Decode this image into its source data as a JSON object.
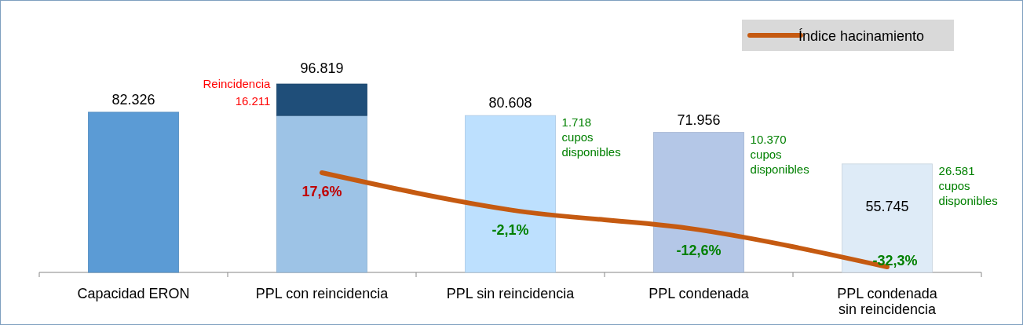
{
  "chart_data": {
    "type": "bar",
    "stacked": true,
    "categories": [
      "Capacidad ERON",
      "PPL con reincidencia",
      "PPL sin reincidencia",
      "PPL condenada",
      "PPL condenada sin reincidencia"
    ],
    "tick_labels": "x",
    "legend": "top right",
    "series": [
      {
        "colors": [
          "#5b9bd5",
          "#9dc3e6",
          "#bde0fe",
          "#b4c7e7",
          "#deebf7"
        ],
        "values": [
          82326,
          80608,
          80608,
          71956,
          55745
        ],
        "value_labels": [
          "82.326",
          null,
          "80.608",
          "71.956",
          "55.745"
        ]
      },
      {
        "color": "#1f4e79",
        "values": [
          null,
          16211,
          null,
          null,
          null
        ]
      },
      {
        "type": "line",
        "name": "Índice hacinamiento",
        "axis": "y2",
        "color": "#c55a11",
        "marker": "none",
        "line_style": "solid",
        "values": [
          null,
          17.6,
          -2.1,
          -12.6,
          -32.3
        ],
        "value_labels": [
          null,
          "17,6%",
          "-2,1%",
          "-12,6%",
          "-32,3%"
        ]
      }
    ],
    "totals": [
      null,
      "96.819",
      null,
      null,
      null
    ],
    "annotations": [
      "Reincidencia\n16.211",
      "1.718\ncupos\ndisponibles",
      "10.370\ncupos\ndisponibles",
      "26.581\ncupos\ndisponibles"
    ]
  }
}
